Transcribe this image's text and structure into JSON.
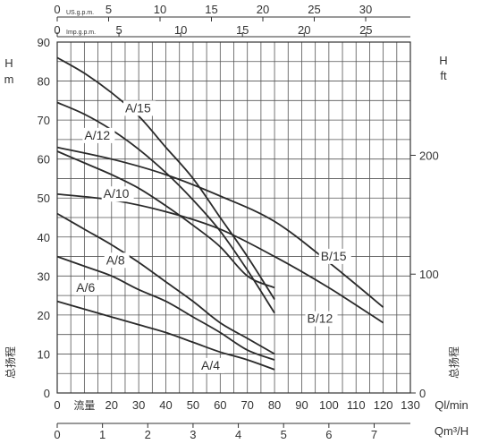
{
  "chart_data": {
    "type": "line",
    "x": {
      "label": "Ql/min",
      "label_cn": "流量",
      "range": [
        0,
        130
      ],
      "ticks": [
        0,
        10,
        20,
        30,
        40,
        50,
        60,
        70,
        80,
        90,
        100,
        110,
        120,
        130
      ],
      "tick_labels": [
        "0",
        "",
        "20",
        "30",
        "40",
        "50",
        "60",
        "70",
        "80",
        "90",
        "100",
        "110",
        "120",
        "130"
      ]
    },
    "x_m3h": {
      "label": "Qm³/H",
      "ticks": [
        0,
        1,
        2,
        3,
        4,
        5,
        6,
        7
      ]
    },
    "x_us_gpm": {
      "label": "US.g.p.m.",
      "ticks": [
        0,
        5,
        10,
        15,
        20,
        25,
        30
      ]
    },
    "x_imp_gpm": {
      "label": "Imp.g.p.m.",
      "ticks": [
        0,
        5,
        10,
        15,
        20,
        25
      ]
    },
    "y": {
      "label_top": "H",
      "unit": "m",
      "label_cn": "总扬程",
      "range": [
        0,
        90
      ],
      "ticks": [
        0,
        10,
        20,
        30,
        40,
        50,
        60,
        70,
        80,
        90
      ]
    },
    "y_ft": {
      "label_top": "H",
      "unit": "ft",
      "label_cn": "总扬程",
      "ticks": [
        0,
        100,
        200
      ]
    },
    "grid": true,
    "series": [
      {
        "name": "A/15",
        "x": [
          0,
          10,
          20,
          30,
          40,
          50,
          60,
          70,
          80
        ],
        "y": [
          86,
          82,
          77,
          71,
          63,
          55,
          45,
          35,
          24
        ]
      },
      {
        "name": "A/12",
        "x": [
          0,
          10,
          20,
          30,
          40,
          50,
          60,
          70,
          80
        ],
        "y": [
          74.5,
          71.5,
          67.5,
          62.5,
          56.5,
          49.5,
          41.5,
          31.5,
          20.5
        ]
      },
      {
        "name": "A/10",
        "x": [
          0,
          10,
          20,
          30,
          40,
          50,
          60,
          70,
          80
        ],
        "y": [
          62,
          59,
          56,
          52.5,
          48,
          43,
          37.5,
          30,
          27
        ]
      },
      {
        "name": "A/8",
        "x": [
          0,
          10,
          20,
          30,
          40,
          50,
          60,
          70,
          80
        ],
        "y": [
          46,
          42,
          38,
          33.5,
          28.5,
          23.5,
          18,
          14,
          10
        ]
      },
      {
        "name": "A/6",
        "x": [
          0,
          10,
          20,
          30,
          40,
          50,
          60,
          70,
          80
        ],
        "y": [
          35,
          32.5,
          30,
          26.5,
          23.5,
          19.5,
          15.5,
          11,
          8.5
        ]
      },
      {
        "name": "A/4",
        "x": [
          0,
          10,
          20,
          30,
          40,
          50,
          60,
          70,
          80
        ],
        "y": [
          23.5,
          21.5,
          19.5,
          17.5,
          15.5,
          13,
          10.5,
          8.5,
          6
        ]
      },
      {
        "name": "B/15",
        "x": [
          0,
          20,
          40,
          60,
          80,
          100,
          120
        ],
        "y": [
          63,
          60,
          56,
          50.5,
          44,
          33.5,
          22
        ]
      },
      {
        "name": "B/12",
        "x": [
          0,
          20,
          40,
          60,
          80,
          100,
          120
        ],
        "y": [
          51,
          49.5,
          46.5,
          42,
          35,
          27,
          18
        ]
      }
    ]
  }
}
